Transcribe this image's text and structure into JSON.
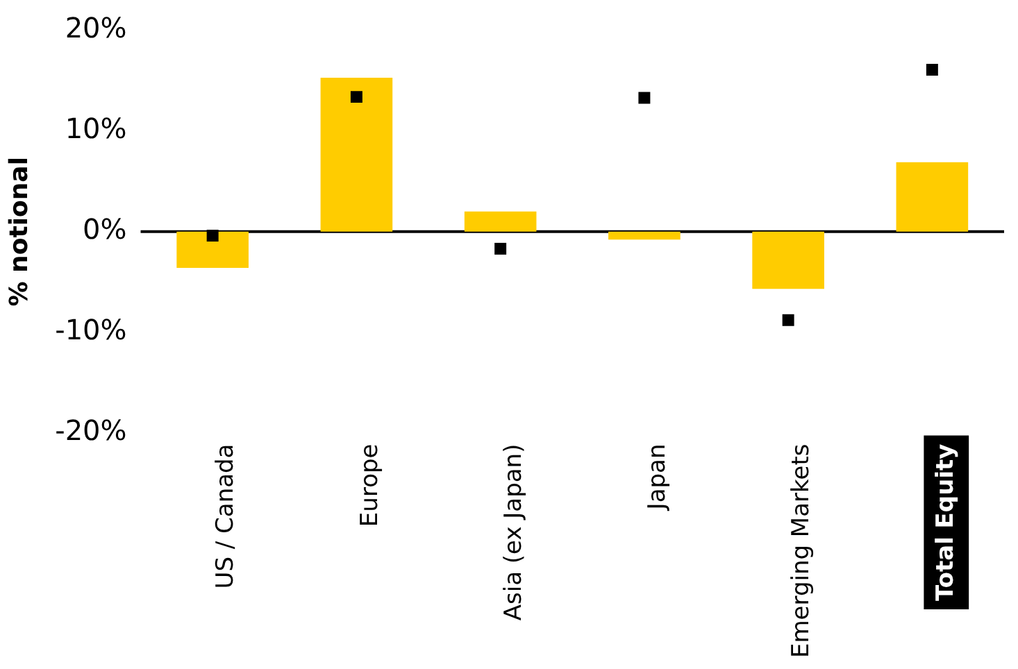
{
  "chart_data": {
    "type": "bar",
    "ylabel": "% notional",
    "categories": [
      "US / Canada",
      "Europe",
      "Asia (ex Japan)",
      "Japan",
      "Emerging Markets",
      "Total Equity"
    ],
    "series": [
      {
        "color": "#ffcc00",
        "values": [
          -3.6,
          15.3,
          2,
          -0.8,
          -5.7,
          6.9
        ]
      },
      {
        "type": "scatter",
        "color": "#000000",
        "marker": "square",
        "values": [
          -0.4,
          13.4,
          -1.7,
          13.3,
          -8.8,
          16.1
        ]
      }
    ],
    "ylim": [
      -20,
      20
    ],
    "yticks": [
      {
        "value": -20,
        "label": "-20%"
      },
      {
        "value": -10,
        "label": "-10%"
      },
      {
        "value": 0,
        "label": "0%"
      },
      {
        "value": 10,
        "label": "10%"
      },
      {
        "value": 20,
        "label": "20%"
      }
    ],
    "ref_lines": [
      {
        "axis": "y",
        "value": 0,
        "color": "#000000"
      }
    ],
    "grid": false,
    "legend": false
  }
}
